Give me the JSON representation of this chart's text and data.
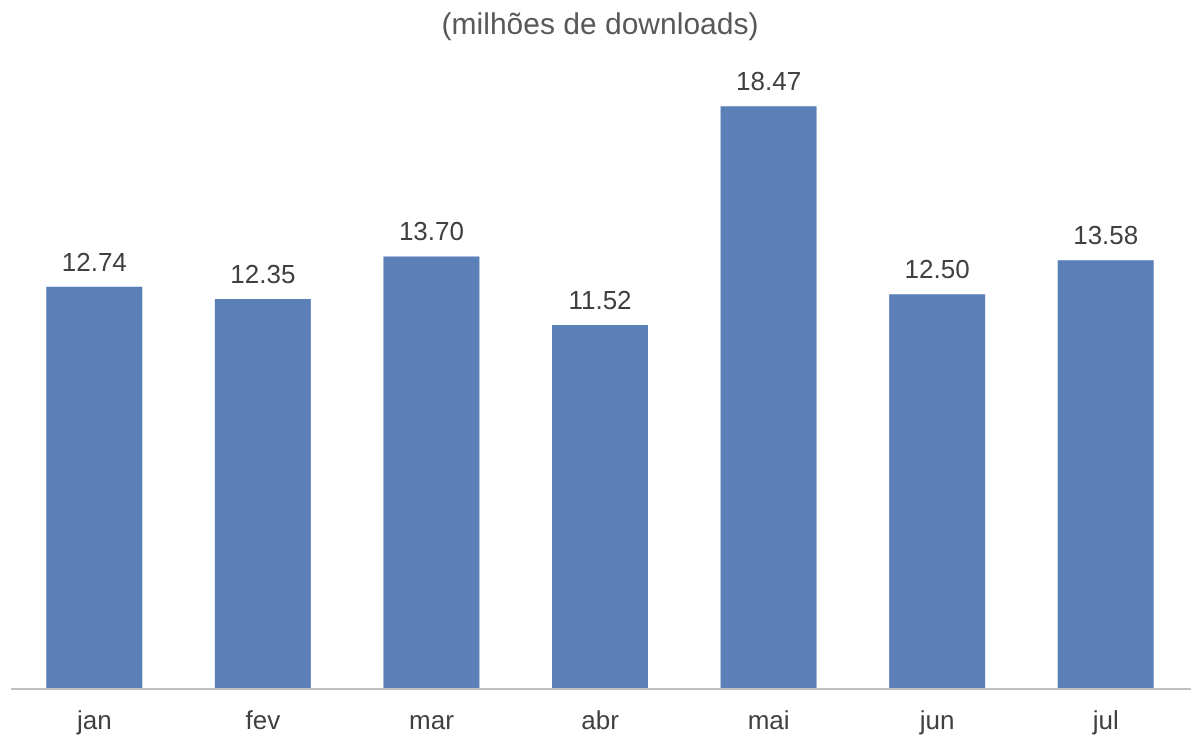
{
  "chart_data": {
    "type": "bar",
    "title": "(milhões de downloads)",
    "categories": [
      "jan",
      "fev",
      "mar",
      "abr",
      "mai",
      "jun",
      "jul"
    ],
    "values": [
      12.74,
      12.35,
      13.7,
      11.52,
      18.47,
      12.5,
      13.58
    ],
    "value_labels": [
      "12.74",
      "12.35",
      "13.70",
      "11.52",
      "18.47",
      "12.50",
      "13.58"
    ],
    "color": "#5b7fb7"
  }
}
